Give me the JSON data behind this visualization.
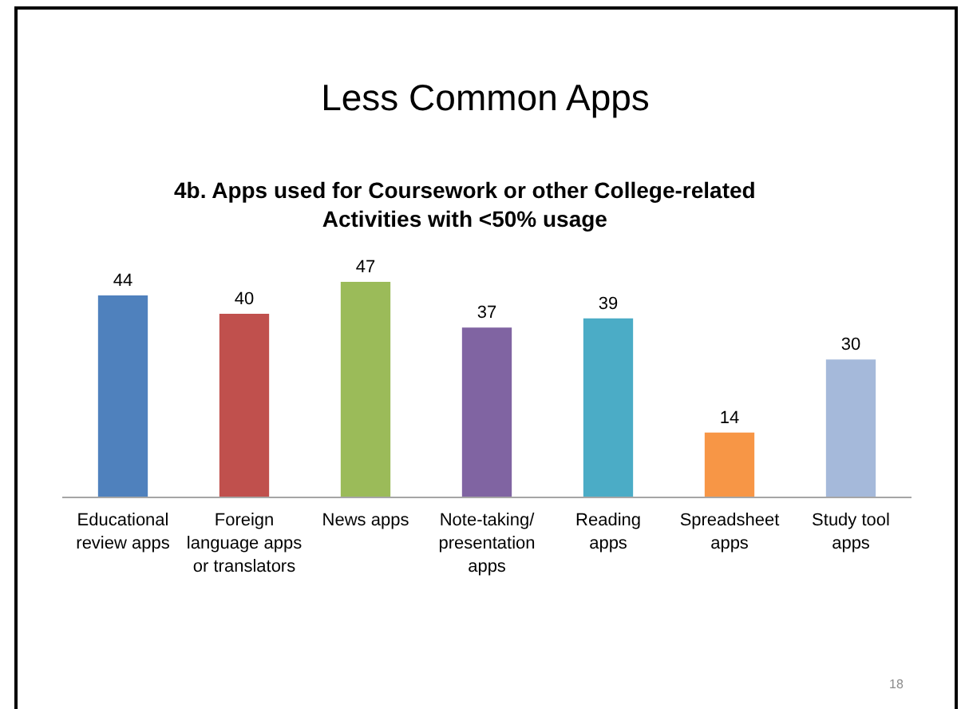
{
  "chart_data": {
    "type": "bar",
    "title": "Less Common Apps",
    "subtitle": "4b. Apps used for Coursework or other College-related\nActivities with <50% usage",
    "categories": [
      "Educational\nreview apps",
      "Foreign\nlanguage apps\nor translators",
      "News apps",
      "Note-taking/\npresentation\napps",
      "Reading\napps",
      "Spreadsheet\napps",
      "Study tool\napps"
    ],
    "values": [
      44,
      40,
      47,
      37,
      39,
      14,
      30
    ],
    "colors": [
      "#4f81bd",
      "#c0504d",
      "#9bbb59",
      "#8064a2",
      "#4bacc6",
      "#f79646",
      "#a5b9da"
    ],
    "data_labels": true,
    "annotations": [
      "18"
    ]
  }
}
